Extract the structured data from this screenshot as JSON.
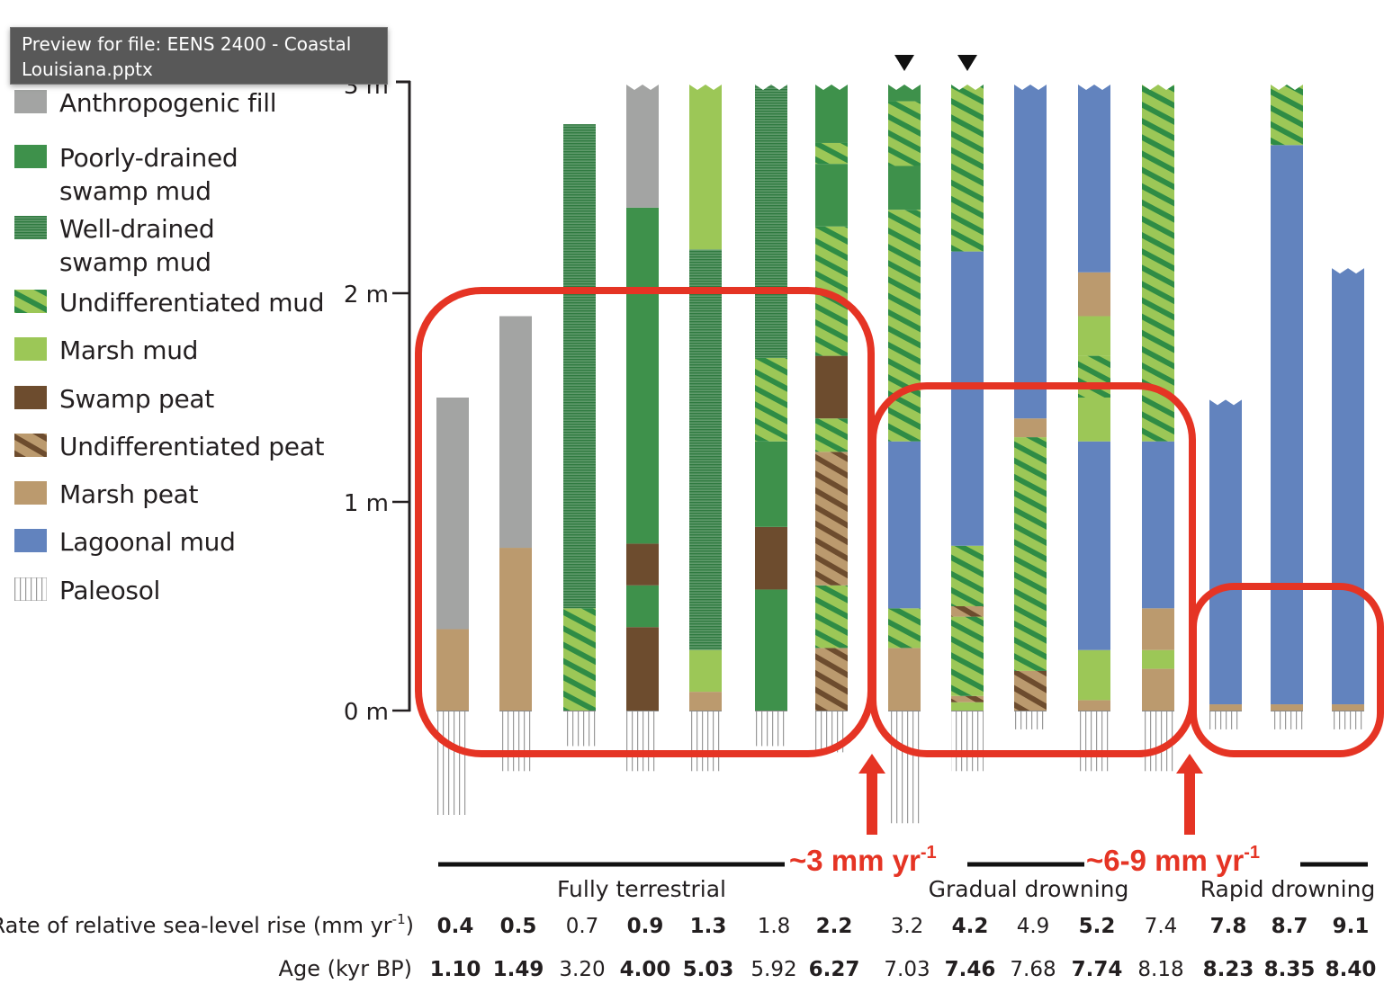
{
  "tooltip": {
    "text": "Preview for file: EENS 2400 - Coastal\nLouisiana.pptx"
  },
  "legend": [
    {
      "key": "fill",
      "label": "Anthropogenic fill"
    },
    {
      "key": "poor",
      "label": "Poorly-drained\nswamp mud"
    },
    {
      "key": "well",
      "label": "Well-drained\nswamp mud"
    },
    {
      "key": "umud",
      "label": "Undifferentiated mud"
    },
    {
      "key": "mmud",
      "label": "Marsh mud"
    },
    {
      "key": "speat",
      "label": "Swamp peat"
    },
    {
      "key": "upeat",
      "label": "Undifferentiated peat"
    },
    {
      "key": "mpeat",
      "label": "Marsh peat"
    },
    {
      "key": "lag",
      "label": "Lagoonal mud"
    },
    {
      "key": "paleo",
      "label": "Paleosol"
    }
  ],
  "colors": {
    "fill": "#a3a4a3",
    "poor": "#3e914b",
    "well_bg": "#5f9a6b",
    "well_line": "#2f7a40",
    "umud_bg": "#9cc757",
    "umud_stripe": "#2f8c45",
    "mmud": "#9cc757",
    "speat": "#6d4c2e",
    "upeat_bg": "#bb9a6e",
    "upeat_stripe": "#6d4c2e",
    "mpeat": "#bb9a6e",
    "lag": "#6283be",
    "paleo": "#9a9a9a",
    "annotation": "#e53424"
  },
  "chart_data": {
    "type": "stratigraphic-columns",
    "yaxis": {
      "unit": "m",
      "ticks": [
        {
          "value": 0,
          "label": "0 m"
        },
        {
          "value": 1,
          "label": "1 m"
        },
        {
          "value": 2,
          "label": "2 m"
        },
        {
          "value": 3,
          "label": "3 m"
        }
      ],
      "range": [
        0,
        3
      ]
    },
    "row_labels": {
      "rate": "Rate of relative sea-level rise (mm yr",
      "rate_sup": "-1",
      "rate_end": ")",
      "age": "Age (kyr BP)"
    },
    "columns": [
      {
        "rate": "0.4",
        "age": "1.10",
        "bold": true,
        "eroded_top": false,
        "marker": false,
        "paleosol_base": -0.5,
        "layers": [
          [
            "mpeat",
            0,
            0.39
          ],
          [
            "fill",
            0.39,
            1.5
          ]
        ]
      },
      {
        "rate": "0.5",
        "age": "1.49",
        "bold": true,
        "eroded_top": false,
        "marker": false,
        "paleosol_base": -0.29,
        "layers": [
          [
            "mpeat",
            0,
            0.78
          ],
          [
            "fill",
            0.78,
            1.89
          ]
        ]
      },
      {
        "rate": "0.7",
        "age": "3.20",
        "bold": false,
        "eroded_top": false,
        "marker": false,
        "paleosol_base": -0.17,
        "layers": [
          [
            "umud",
            0,
            0.49
          ],
          [
            "well",
            0.49,
            2.81
          ]
        ]
      },
      {
        "rate": "0.9",
        "age": "4.00",
        "bold": true,
        "eroded_top": true,
        "marker": false,
        "paleosol_base": -0.29,
        "layers": [
          [
            "speat",
            0,
            0.4
          ],
          [
            "poor",
            0.4,
            0.6
          ],
          [
            "speat",
            0.6,
            0.8
          ],
          [
            "poor",
            0.8,
            2.41
          ],
          [
            "fill",
            2.41,
            3.0
          ]
        ]
      },
      {
        "rate": "1.3",
        "age": "5.03",
        "bold": true,
        "eroded_top": true,
        "marker": false,
        "paleosol_base": -0.29,
        "layers": [
          [
            "mpeat",
            0,
            0.09
          ],
          [
            "mmud",
            0.09,
            0.29
          ],
          [
            "well",
            0.29,
            2.21
          ],
          [
            "mmud",
            2.21,
            3.0
          ]
        ]
      },
      {
        "rate": "1.8",
        "age": "5.92",
        "bold": false,
        "eroded_top": true,
        "marker": false,
        "paleosol_base": -0.17,
        "layers": [
          [
            "poor",
            0,
            0.58
          ],
          [
            "speat",
            0.58,
            0.88
          ],
          [
            "poor",
            0.88,
            1.29
          ],
          [
            "umud",
            1.29,
            1.69
          ],
          [
            "well",
            1.69,
            3.0
          ]
        ]
      },
      {
        "rate": "2.2",
        "age": "6.27",
        "bold": true,
        "eroded_top": true,
        "marker": false,
        "paleosol_base": -0.2,
        "layers": [
          [
            "upeat",
            0,
            0.3
          ],
          [
            "umud",
            0.3,
            0.6
          ],
          [
            "upeat",
            0.6,
            1.24
          ],
          [
            "umud",
            1.24,
            1.4
          ],
          [
            "speat",
            1.4,
            1.7
          ],
          [
            "umud",
            1.7,
            2.32
          ],
          [
            "poor",
            2.32,
            2.62
          ],
          [
            "umud",
            2.62,
            2.72
          ],
          [
            "poor",
            2.72,
            3.0
          ]
        ]
      },
      {
        "rate": "3.2",
        "age": "7.03",
        "bold": false,
        "eroded_top": true,
        "marker": true,
        "paleosol_base": -0.54,
        "layers": [
          [
            "mpeat",
            0,
            0.3
          ],
          [
            "umud",
            0.3,
            0.49
          ],
          [
            "lag",
            0.49,
            1.29
          ],
          [
            "umud",
            1.29,
            2.4
          ],
          [
            "poor",
            2.4,
            2.61
          ],
          [
            "umud",
            2.61,
            2.92
          ],
          [
            "poor",
            2.92,
            3.0
          ]
        ]
      },
      {
        "rate": "4.2",
        "age": "7.46",
        "bold": true,
        "eroded_top": true,
        "marker": true,
        "paleosol_base": -0.29,
        "layers": [
          [
            "mmud",
            0,
            0.04
          ],
          [
            "upeat",
            0.04,
            0.07
          ],
          [
            "umud",
            0.07,
            0.45
          ],
          [
            "upeat",
            0.45,
            0.5
          ],
          [
            "umud",
            0.5,
            0.79
          ],
          [
            "lag",
            0.79,
            2.2
          ],
          [
            "umud",
            2.2,
            3.0
          ]
        ]
      },
      {
        "rate": "4.9",
        "age": "7.68",
        "bold": false,
        "eroded_top": true,
        "marker": false,
        "paleosol_base": -0.09,
        "layers": [
          [
            "upeat",
            0,
            0.19
          ],
          [
            "umud",
            0.19,
            1.31
          ],
          [
            "mpeat",
            1.31,
            1.4
          ],
          [
            "lag",
            1.4,
            3.0
          ]
        ]
      },
      {
        "rate": "5.2",
        "age": "7.74",
        "bold": true,
        "eroded_top": true,
        "marker": false,
        "paleosol_base": -0.29,
        "layers": [
          [
            "mpeat",
            0,
            0.05
          ],
          [
            "mmud",
            0.05,
            0.29
          ],
          [
            "lag",
            0.29,
            1.29
          ],
          [
            "mmud",
            1.29,
            1.5
          ],
          [
            "umud",
            1.5,
            1.7
          ],
          [
            "mmud",
            1.7,
            1.89
          ],
          [
            "mpeat",
            1.89,
            2.1
          ],
          [
            "lag",
            2.1,
            3.0
          ]
        ]
      },
      {
        "rate": "7.4",
        "age": "8.18",
        "bold": false,
        "eroded_top": true,
        "marker": false,
        "paleosol_base": -0.29,
        "layers": [
          [
            "mpeat",
            0,
            0.2
          ],
          [
            "mmud",
            0.2,
            0.29
          ],
          [
            "mpeat",
            0.29,
            0.49
          ],
          [
            "lag",
            0.49,
            1.29
          ],
          [
            "umud",
            1.29,
            3.0
          ]
        ]
      },
      {
        "rate": "7.8",
        "age": "8.23",
        "bold": true,
        "eroded_top": true,
        "marker": false,
        "paleosol_base": -0.09,
        "layers": [
          [
            "mpeat",
            0,
            0.03
          ],
          [
            "lag",
            0.03,
            1.49
          ]
        ]
      },
      {
        "rate": "8.7",
        "age": "8.35",
        "bold": true,
        "eroded_top": true,
        "marker": false,
        "paleosol_base": -0.09,
        "layers": [
          [
            "mpeat",
            0,
            0.03
          ],
          [
            "lag",
            0.03,
            2.71
          ],
          [
            "umud",
            2.71,
            3.0
          ]
        ]
      },
      {
        "rate": "9.1",
        "age": "8.40",
        "bold": true,
        "eroded_top": true,
        "marker": false,
        "paleosol_base": -0.09,
        "layers": [
          [
            "mpeat",
            0,
            0.03
          ],
          [
            "lag",
            0.03,
            2.12
          ]
        ]
      }
    ],
    "groups": [
      {
        "label": "Fully terrestrial"
      },
      {
        "label": "Gradual drowning"
      },
      {
        "label": "Rapid drowning"
      }
    ],
    "annotations": [
      {
        "text": "~3 mm yr",
        "sup": "-1"
      },
      {
        "text": "~6-9 mm yr",
        "sup": "-1"
      }
    ]
  }
}
